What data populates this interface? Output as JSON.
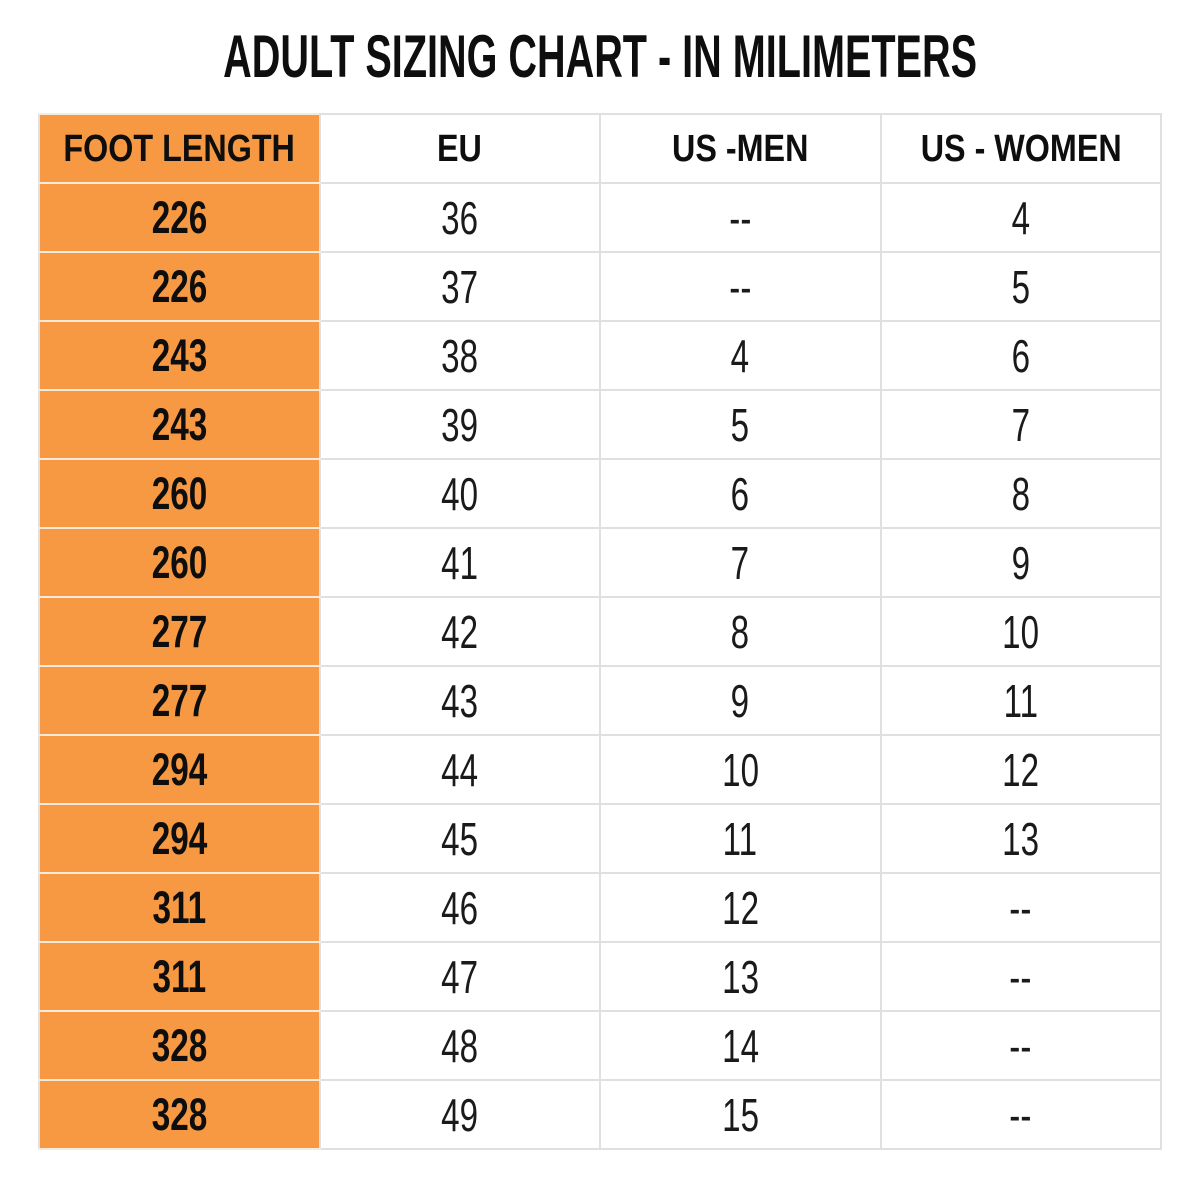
{
  "title": "ADULT SIZING CHART - IN MILIMETERS",
  "colors": {
    "accent_orange": "#F79942",
    "grid_line": "#E0E0E0",
    "text": "#131313",
    "background": "#FFFFFF"
  },
  "chart_data": {
    "type": "table",
    "title": "ADULT SIZING CHART - IN MILIMETERS",
    "columns": [
      "FOOT LENGTH",
      "EU",
      "US -MEN",
      "US - WOMEN"
    ],
    "rows": [
      [
        "226",
        "36",
        "--",
        "4"
      ],
      [
        "226",
        "37",
        "--",
        "5"
      ],
      [
        "243",
        "38",
        "4",
        "6"
      ],
      [
        "243",
        "39",
        "5",
        "7"
      ],
      [
        "260",
        "40",
        "6",
        "8"
      ],
      [
        "260",
        "41",
        "7",
        "9"
      ],
      [
        "277",
        "42",
        "8",
        "10"
      ],
      [
        "277",
        "43",
        "9",
        "11"
      ],
      [
        "294",
        "44",
        "10",
        "12"
      ],
      [
        "294",
        "45",
        "11",
        "13"
      ],
      [
        "311",
        "46",
        "12",
        "--"
      ],
      [
        "311",
        "47",
        "13",
        "--"
      ],
      [
        "328",
        "48",
        "14",
        "--"
      ],
      [
        "328",
        "49",
        "15",
        "--"
      ]
    ]
  }
}
